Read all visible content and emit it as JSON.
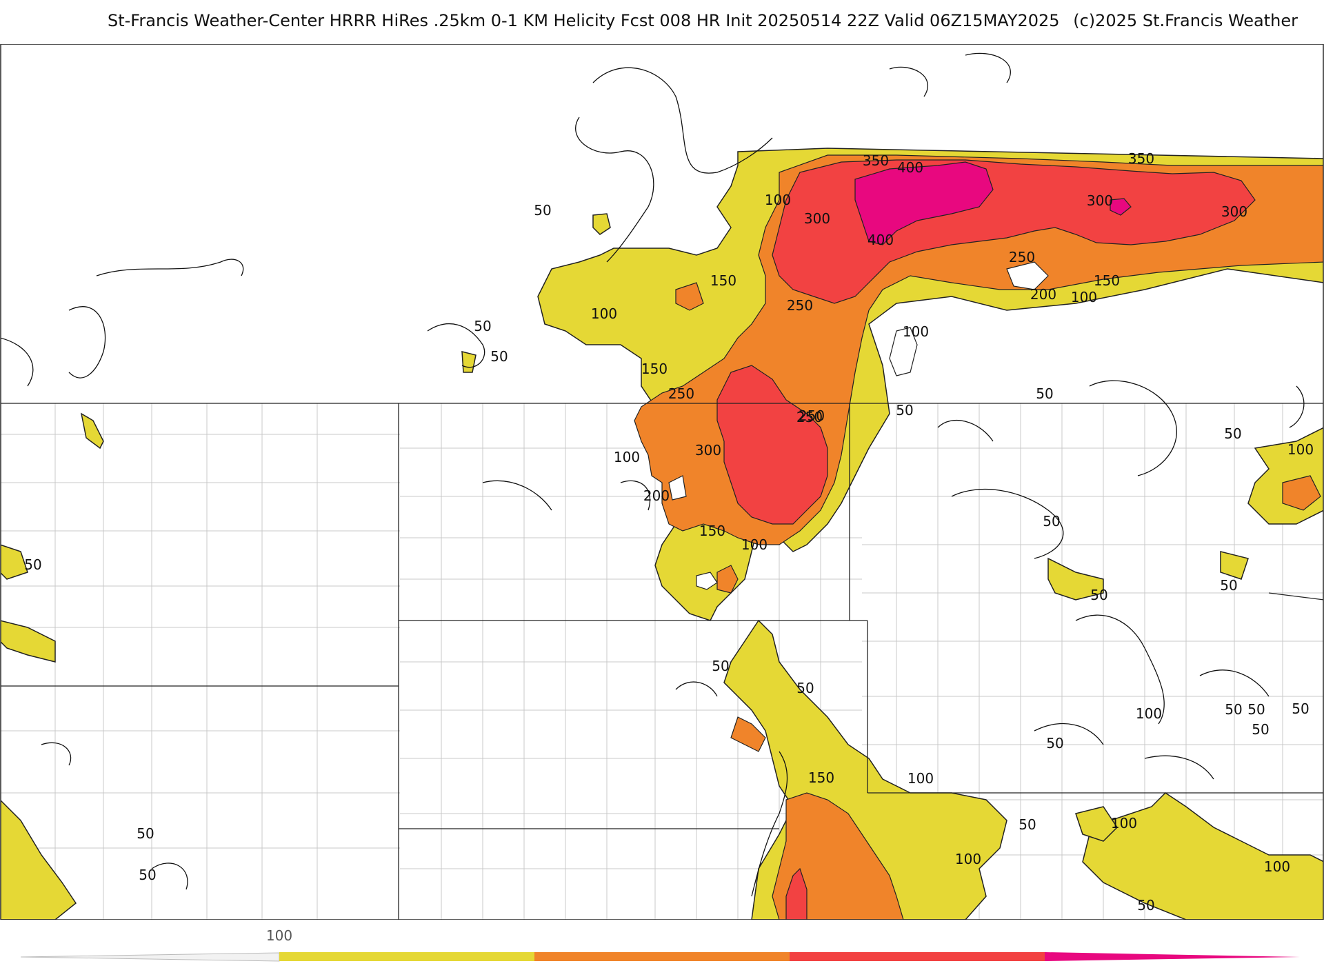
{
  "header": {
    "title": "St-Francis Weather-Center HRRR HiRes .25km 0-1 KM Helicity Fcst 008 HR Init 20250514 22Z  Valid 06Z15MAY2025",
    "copyright": "(c)2025 St.Francis Weather"
  },
  "colors": {
    "level_50_100": "#e5d835",
    "level_150": "#e4dd43",
    "level_200_250": "#f0842a",
    "level_300_350": "#f24242",
    "level_400": "#e8087f",
    "contour": "#111111",
    "county_lines": "#c8c8c8",
    "state_lines": "#222222"
  },
  "contour_labels": [
    {
      "text": "350"
    },
    {
      "text": "400"
    },
    {
      "text": "350"
    },
    {
      "text": "100"
    },
    {
      "text": "300"
    },
    {
      "text": "300"
    },
    {
      "text": "300"
    },
    {
      "text": "400"
    },
    {
      "text": "50"
    },
    {
      "text": "250"
    },
    {
      "text": "250"
    },
    {
      "text": "200"
    },
    {
      "text": "100"
    },
    {
      "text": "150"
    },
    {
      "text": "150"
    },
    {
      "text": "100"
    },
    {
      "text": "50"
    },
    {
      "text": "50"
    },
    {
      "text": "250"
    },
    {
      "text": "100"
    },
    {
      "text": "150"
    },
    {
      "text": "250"
    },
    {
      "text": "50"
    },
    {
      "text": "250"
    },
    {
      "text": "300"
    },
    {
      "text": "100"
    },
    {
      "text": "200"
    },
    {
      "text": "150"
    },
    {
      "text": "100"
    },
    {
      "text": "50"
    },
    {
      "text": "50"
    },
    {
      "text": "100"
    },
    {
      "text": "50"
    },
    {
      "text": "50"
    },
    {
      "text": "50"
    },
    {
      "text": "50"
    },
    {
      "text": "50"
    },
    {
      "text": "50"
    },
    {
      "text": "100"
    },
    {
      "text": "50"
    },
    {
      "text": "150"
    },
    {
      "text": "100"
    },
    {
      "text": "50"
    },
    {
      "text": "50"
    },
    {
      "text": "50"
    },
    {
      "text": "50"
    },
    {
      "text": "100"
    },
    {
      "text": "100"
    },
    {
      "text": "100"
    },
    {
      "text": "50"
    },
    {
      "text": "50"
    },
    {
      "text": "50"
    },
    {
      "text": "50"
    }
  ],
  "colorbar": {
    "tick_label": "100",
    "segments": [
      "#e5d835",
      "#f0842a",
      "#f24242",
      "#e8087f"
    ]
  }
}
